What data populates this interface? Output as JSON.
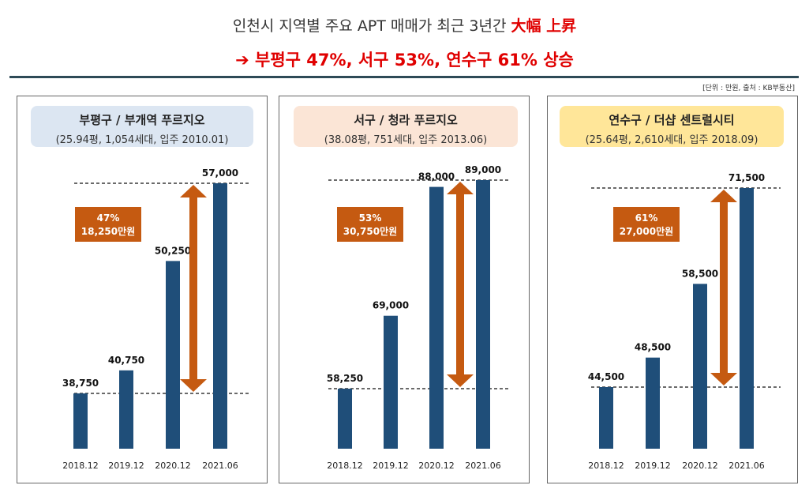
{
  "header": {
    "title_prefix": "인천시 지역별 주요 APT 매매가 최근 3년간",
    "title_highlight": "大幅 上昇",
    "subtitle": "➔ 부평구 47%, 서구 53%, 연수구 61% 상승",
    "unit_note": "[단위 : 만원, 출처 : KB부동산]"
  },
  "colors": {
    "bar": "#1f4e79",
    "arrow": "#c55a11",
    "callout_bg": "#c55a11",
    "title_red": "#e00000",
    "panel1_head": "#dce6f2",
    "panel2_head": "#fbe5d6",
    "panel3_head": "#ffe699"
  },
  "chart_data": [
    {
      "type": "bar",
      "title": "부평구 / 부개역 푸르지오",
      "subtitle": "(25.94평, 1,054세대, 입주 2010.01)",
      "categories": [
        "2018.12",
        "2019.12",
        "2020.12",
        "2021.06"
      ],
      "values": [
        38750,
        40750,
        50250,
        57000
      ],
      "value_labels": [
        "38,750",
        "40,750",
        "50,250",
        "57,000"
      ],
      "change_pct": "47%",
      "change_amount": "18,250만원"
    },
    {
      "type": "bar",
      "title": "서구 / 청라 푸르지오",
      "subtitle": "(38.08평, 751세대, 입주 2013.06)",
      "categories": [
        "2018.12",
        "2019.12",
        "2020.12",
        "2021.06"
      ],
      "values": [
        58250,
        69000,
        88000,
        89000
      ],
      "value_labels": [
        "58,250",
        "69,000",
        "88,000",
        "89,000"
      ],
      "change_pct": "53%",
      "change_amount": "30,750만원"
    },
    {
      "type": "bar",
      "title": "연수구 / 더샵 센트럴시티",
      "subtitle": "(25.64평, 2,610세대, 입주 2018.09)",
      "categories": [
        "2018.12",
        "2019.12",
        "2020.12",
        "2021.06"
      ],
      "values": [
        44500,
        48500,
        58500,
        71500
      ],
      "value_labels": [
        "44,500",
        "48,500",
        "58,500",
        "71,500"
      ],
      "change_pct": "61%",
      "change_amount": "27,000만원"
    }
  ]
}
